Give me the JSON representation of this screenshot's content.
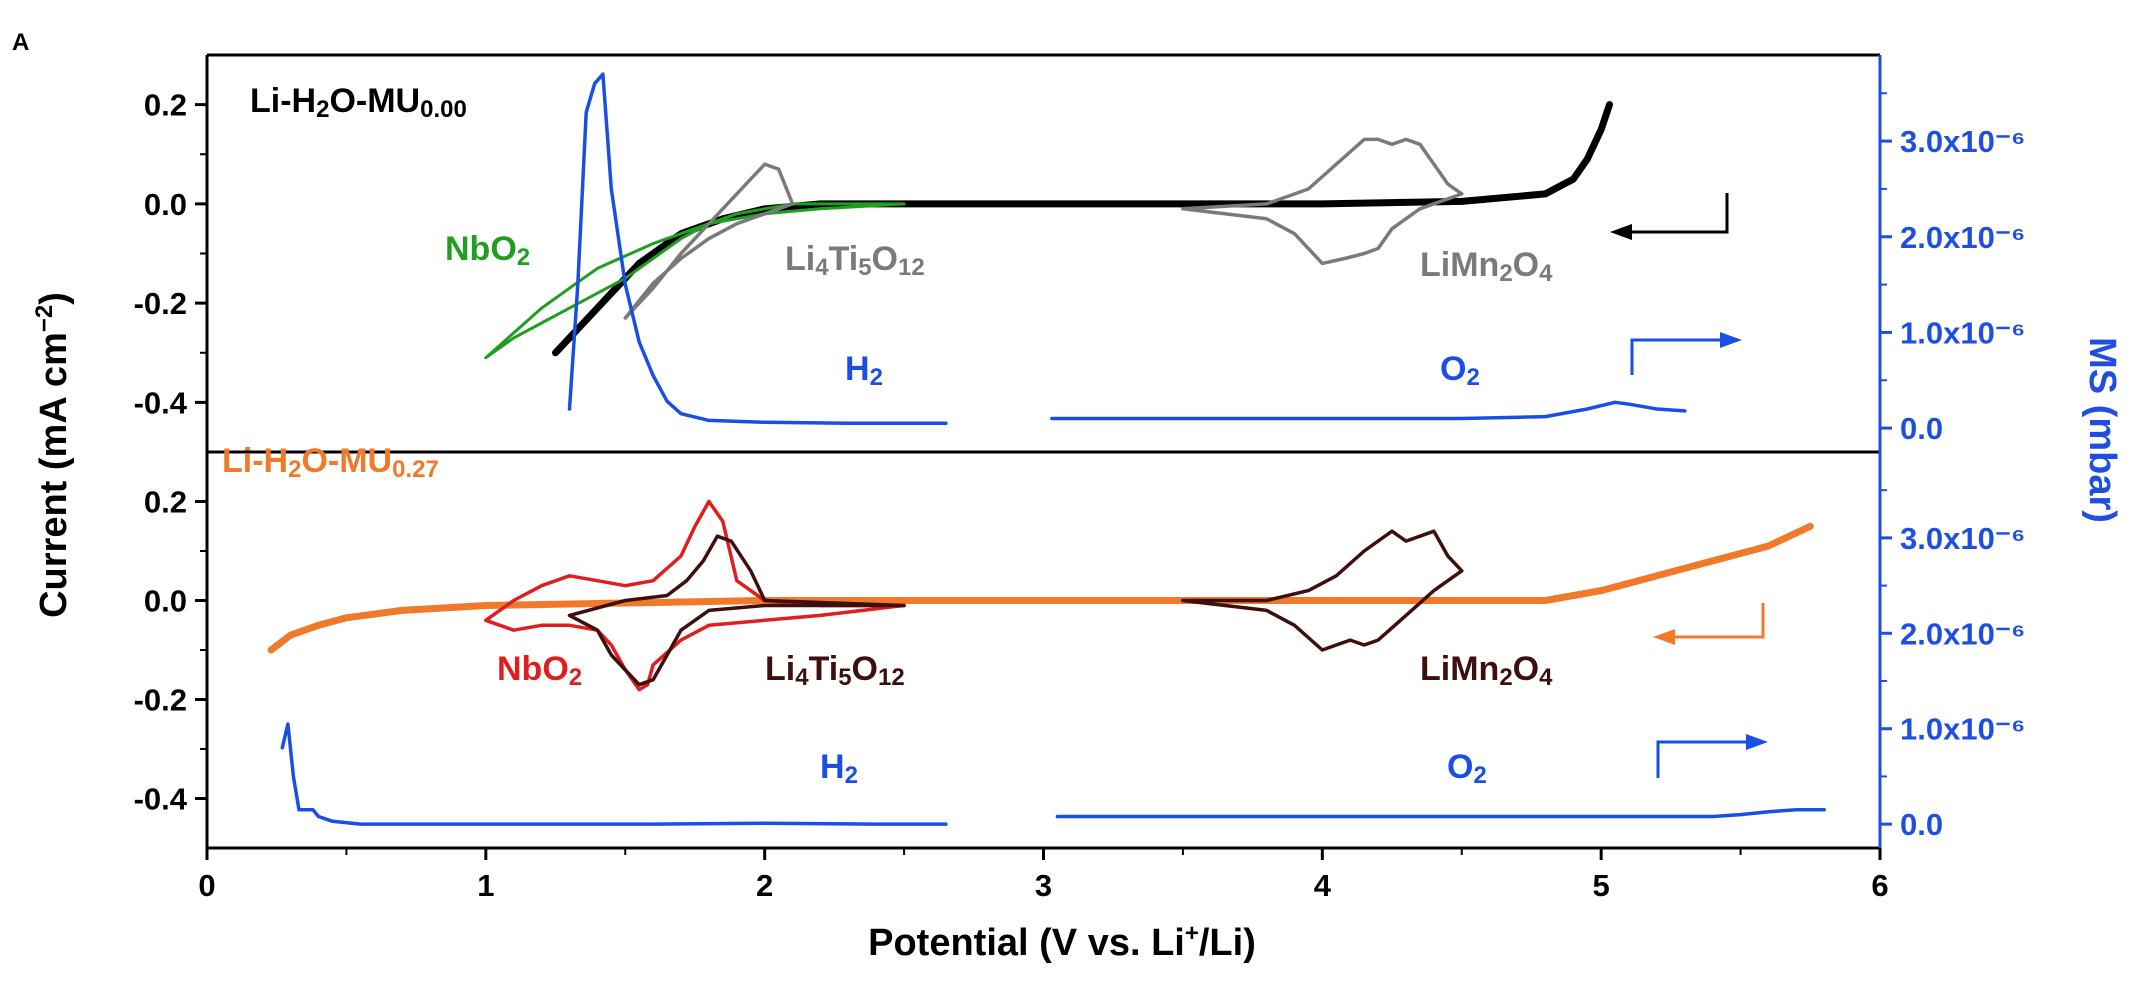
{
  "panel_tag": "A",
  "colors": {
    "axis": "#000000",
    "ms_axis": "#1f4fe0",
    "ms_line": "#1a4fe6",
    "uncoated": "#000000",
    "coated": "#f07a2a",
    "lto_top": "#7a7a7a",
    "lmo_top": "#7a7a7a",
    "nbo2_top": "#1f9e1f",
    "nbo2_bottom": "#e01e1e",
    "lto_bottom": "#3d0f0f",
    "lmo_bottom": "#3d0f0f"
  },
  "axes": {
    "xlabel": "Potential (V vs. Li⁺/Li)",
    "ylabel": "Current (mA cm⁻²)",
    "y2label": "MS (mbar)",
    "xlim": [
      0,
      6
    ],
    "xticks": [
      "0",
      "1",
      "2",
      "3",
      "4",
      "5",
      "6"
    ],
    "ylim": [
      -0.5,
      0.3
    ],
    "yticks": [
      "0.2",
      "0.0",
      "-0.2",
      "-0.4"
    ],
    "y2lim": [
      -2.5e-07,
      3.9e-06
    ],
    "y2ticks": [
      "3.0x10⁻⁶",
      "2.0x10⁻⁶",
      "1.0x10⁻⁶",
      "0.0"
    ]
  },
  "annotations": {
    "top": {
      "title": "Li-H₂O-MU₀.₀₀",
      "nbo2": "NbO₂",
      "lto": "Li₄Ti₅O₁₂",
      "lmo": "LiMn₂O₄",
      "h2": "H₂",
      "o2": "O₂"
    },
    "bottom": {
      "title": "Li-H₂O-MU₀.₂₇",
      "nbo2": "NbO₂",
      "lto": "Li₄Ti₅O₁₂",
      "lmo": "LiMn₂O₄",
      "h2": "H₂",
      "o2": "O₂"
    }
  },
  "chart_data": [
    {
      "type": "line",
      "panel": "top",
      "title": "Li-H₂O-MU₀.₀₀",
      "xlim": [
        0,
        6
      ],
      "ylim": [
        -0.5,
        0.3
      ],
      "series": [
        {
          "name": "Li-H₂O-MU₀.₀₀",
          "axis": "left",
          "color": "#000000",
          "width": 7,
          "x": [
            1.25,
            1.35,
            1.45,
            1.55,
            1.7,
            1.85,
            2.0,
            2.2,
            2.5,
            3.0,
            3.5,
            4.0,
            4.5,
            4.8,
            4.9,
            4.95,
            5.0,
            5.03
          ],
          "y": [
            -0.3,
            -0.24,
            -0.18,
            -0.12,
            -0.06,
            -0.03,
            -0.01,
            0.0,
            0.0,
            0.0,
            0.0,
            0.0,
            0.005,
            0.02,
            0.05,
            0.09,
            0.15,
            0.2
          ]
        },
        {
          "name": "NbO₂",
          "axis": "left",
          "color": "#1f9e1f",
          "width": 3,
          "x": [
            1.0,
            1.1,
            1.2,
            1.3,
            1.4,
            1.5,
            1.6,
            1.7,
            1.8,
            1.9,
            2.0,
            2.1,
            2.2,
            2.35,
            2.5,
            2.35,
            2.2,
            2.0,
            1.8,
            1.6,
            1.4,
            1.3,
            1.2,
            1.1,
            1.0
          ],
          "y": [
            -0.31,
            -0.27,
            -0.24,
            -0.21,
            -0.18,
            -0.15,
            -0.11,
            -0.07,
            -0.04,
            -0.02,
            -0.01,
            0.0,
            0.0,
            0.0,
            0.0,
            -0.005,
            -0.01,
            -0.02,
            -0.04,
            -0.08,
            -0.13,
            -0.17,
            -0.21,
            -0.26,
            -0.31
          ]
        },
        {
          "name": "Li₄Ti₅O₁₂",
          "axis": "left",
          "color": "#7a7a7a",
          "width": 3.5,
          "x": [
            1.5,
            1.6,
            1.7,
            1.8,
            1.9,
            1.95,
            2.0,
            2.05,
            2.1,
            2.05,
            2.0,
            1.9,
            1.8,
            1.7,
            1.6,
            1.5
          ],
          "y": [
            -0.23,
            -0.17,
            -0.1,
            -0.04,
            0.02,
            0.05,
            0.08,
            0.07,
            0.0,
            -0.01,
            -0.02,
            -0.04,
            -0.07,
            -0.11,
            -0.16,
            -0.23
          ]
        },
        {
          "name": "LiMn₂O₄",
          "axis": "left",
          "color": "#7a7a7a",
          "width": 3.5,
          "x": [
            3.5,
            3.8,
            3.95,
            4.05,
            4.15,
            4.2,
            4.25,
            4.3,
            4.35,
            4.45,
            4.5,
            4.35,
            4.25,
            4.2,
            4.15,
            4.08,
            4.0,
            3.9,
            3.8,
            3.5
          ],
          "y": [
            -0.01,
            0.0,
            0.03,
            0.08,
            0.13,
            0.13,
            0.12,
            0.13,
            0.12,
            0.04,
            0.02,
            -0.01,
            -0.05,
            -0.09,
            -0.1,
            -0.11,
            -0.12,
            -0.06,
            -0.03,
            -0.01
          ]
        },
        {
          "name": "MS H₂",
          "axis": "right",
          "color": "#1a4fe6",
          "width": 3.5,
          "x": [
            1.3,
            1.33,
            1.36,
            1.39,
            1.42,
            1.45,
            1.5,
            1.55,
            1.6,
            1.65,
            1.7,
            1.8,
            2.0,
            2.3,
            2.65
          ],
          "y": [
            2e-07,
            1.5e-06,
            3.3e-06,
            3.6e-06,
            3.7e-06,
            2.5e-06,
            1.5e-06,
            9e-07,
            5.5e-07,
            2.8e-07,
            1.5e-07,
            8e-08,
            6e-08,
            5e-08,
            5e-08
          ]
        },
        {
          "name": "MS O₂",
          "axis": "right",
          "color": "#1a4fe6",
          "width": 3.5,
          "x": [
            3.03,
            3.5,
            4.0,
            4.5,
            4.8,
            4.95,
            5.05,
            5.1,
            5.2,
            5.3
          ],
          "y": [
            1e-07,
            1e-07,
            1e-07,
            1e-07,
            1.2e-07,
            2e-07,
            2.7e-07,
            2.5e-07,
            2e-07,
            1.8e-07
          ]
        }
      ]
    },
    {
      "type": "line",
      "panel": "bottom",
      "title": "Li-H₂O-MU₀.₂₇",
      "xlim": [
        0,
        6
      ],
      "ylim": [
        -0.5,
        0.3
      ],
      "series": [
        {
          "name": "Li-H₂O-MU₀.₂₇",
          "axis": "left",
          "color": "#f07a2a",
          "width": 7,
          "x": [
            0.23,
            0.3,
            0.4,
            0.5,
            0.7,
            1.0,
            1.5,
            2.0,
            2.5,
            3.0,
            3.5,
            4.0,
            4.5,
            4.8,
            5.0,
            5.2,
            5.4,
            5.6,
            5.75
          ],
          "y": [
            -0.1,
            -0.07,
            -0.05,
            -0.035,
            -0.02,
            -0.01,
            -0.005,
            0.0,
            0.0,
            0.0,
            0.0,
            0.0,
            0.0,
            0.0,
            0.02,
            0.05,
            0.08,
            0.11,
            0.15
          ]
        },
        {
          "name": "NbO₂",
          "axis": "left",
          "color": "#e01e1e",
          "width": 3.5,
          "x": [
            1.0,
            1.1,
            1.2,
            1.3,
            1.4,
            1.5,
            1.6,
            1.7,
            1.75,
            1.8,
            1.85,
            1.9,
            2.0,
            2.2,
            2.5,
            2.2,
            2.0,
            1.8,
            1.7,
            1.6,
            1.58,
            1.55,
            1.5,
            1.45,
            1.4,
            1.3,
            1.2,
            1.1,
            1.0
          ],
          "y": [
            -0.04,
            0.0,
            0.03,
            0.05,
            0.04,
            0.03,
            0.04,
            0.09,
            0.15,
            0.2,
            0.16,
            0.04,
            0.0,
            -0.01,
            -0.01,
            -0.03,
            -0.04,
            -0.05,
            -0.08,
            -0.13,
            -0.17,
            -0.18,
            -0.14,
            -0.09,
            -0.06,
            -0.05,
            -0.05,
            -0.06,
            -0.04
          ]
        },
        {
          "name": "Li₄Ti₅O₁₂",
          "axis": "left",
          "color": "#3d0f0f",
          "width": 3.5,
          "x": [
            1.3,
            1.5,
            1.65,
            1.72,
            1.78,
            1.83,
            1.88,
            1.95,
            2.0,
            2.5,
            2.0,
            1.8,
            1.7,
            1.65,
            1.6,
            1.55,
            1.45,
            1.4,
            1.3
          ],
          "y": [
            -0.03,
            0.0,
            0.01,
            0.04,
            0.08,
            0.13,
            0.12,
            0.06,
            0.0,
            -0.01,
            -0.01,
            -0.02,
            -0.06,
            -0.11,
            -0.16,
            -0.17,
            -0.11,
            -0.06,
            -0.03
          ]
        },
        {
          "name": "LiMn₂O₄",
          "axis": "left",
          "color": "#3d0f0f",
          "width": 3.5,
          "x": [
            3.5,
            3.8,
            3.95,
            4.05,
            4.15,
            4.25,
            4.3,
            4.35,
            4.4,
            4.45,
            4.5,
            4.4,
            4.3,
            4.2,
            4.15,
            4.1,
            4.05,
            4.0,
            3.9,
            3.8,
            3.5
          ],
          "y": [
            0.0,
            0.0,
            0.02,
            0.05,
            0.1,
            0.14,
            0.12,
            0.13,
            0.14,
            0.09,
            0.06,
            0.02,
            -0.03,
            -0.08,
            -0.09,
            -0.08,
            -0.09,
            -0.1,
            -0.05,
            -0.02,
            0.0
          ]
        },
        {
          "name": "MS H₂",
          "axis": "right",
          "color": "#1a4fe6",
          "width": 3.5,
          "x": [
            0.27,
            0.29,
            0.31,
            0.33,
            0.35,
            0.38,
            0.4,
            0.45,
            0.55,
            0.8,
            1.2,
            1.6,
            2.0,
            2.4,
            2.65
          ],
          "y": [
            8e-07,
            1.05e-06,
            5e-07,
            1.5e-07,
            1.5e-07,
            1.5e-07,
            8e-08,
            3e-08,
            0.0,
            0.0,
            0.0,
            0.0,
            1e-08,
            0.0,
            0.0
          ]
        },
        {
          "name": "MS O₂",
          "axis": "right",
          "color": "#1a4fe6",
          "width": 3.5,
          "x": [
            3.05,
            3.5,
            4.0,
            4.5,
            5.0,
            5.4,
            5.5,
            5.6,
            5.7,
            5.8
          ],
          "y": [
            8e-08,
            8e-08,
            8e-08,
            8e-08,
            8e-08,
            8e-08,
            1e-07,
            1.3e-07,
            1.5e-07,
            1.5e-07
          ]
        }
      ]
    }
  ]
}
